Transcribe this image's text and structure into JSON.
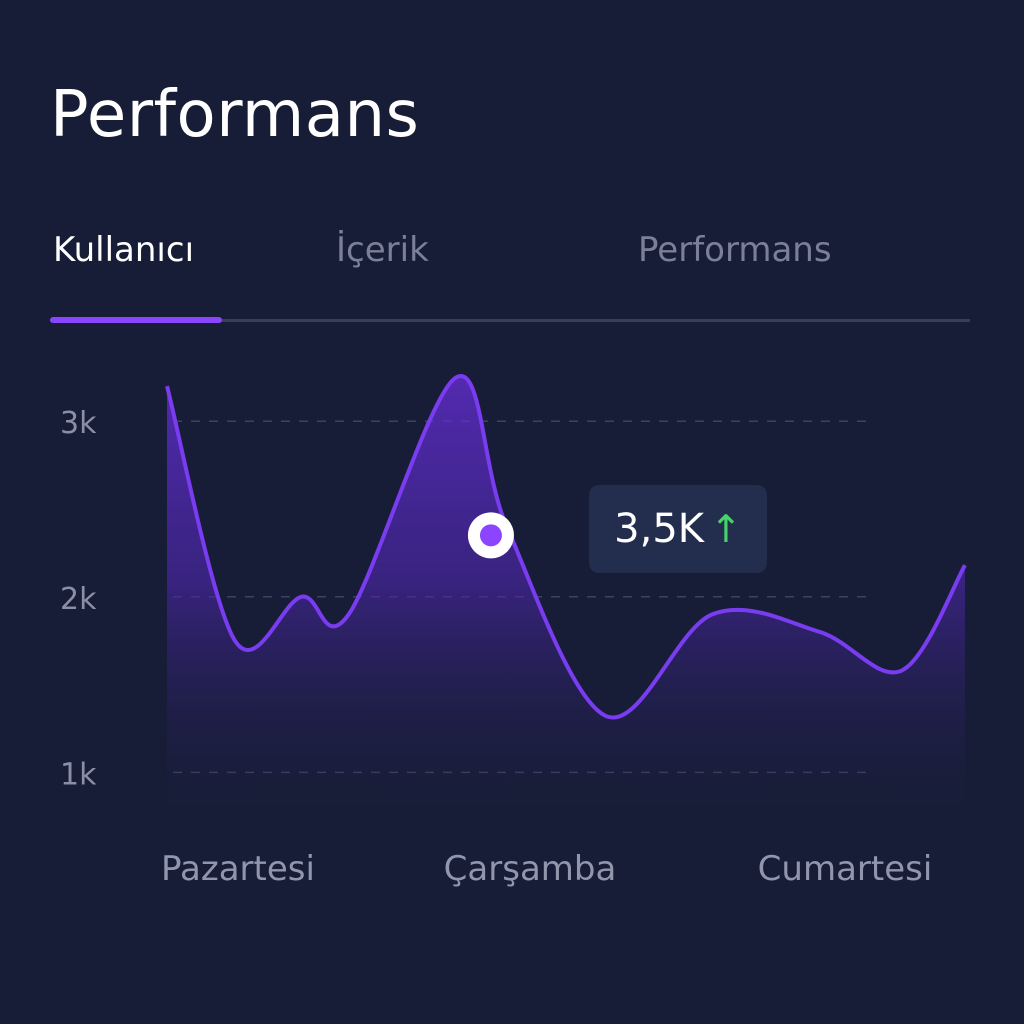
{
  "title": "Performans",
  "tabs": [
    {
      "label": "Kullanıcı",
      "active": true
    },
    {
      "label": "İçerik",
      "active": false
    },
    {
      "label": "Performans",
      "active": false
    }
  ],
  "colors": {
    "background": "#171d36",
    "accent": "#8b45ff",
    "line": "#7a3cf0",
    "marker_fill": "#8b45ff",
    "positive": "#46d46a"
  },
  "tooltip": {
    "value": "3,5K",
    "trend_icon": "arrow-up-icon"
  },
  "chart_data": {
    "type": "area",
    "categories": [
      "Pazartesi",
      "Çarşamba",
      "Cumartesi"
    ],
    "yticks": [
      {
        "label": "3k",
        "value": 3000
      },
      {
        "label": "2k",
        "value": 2000
      },
      {
        "label": "1k",
        "value": 1000
      }
    ],
    "ylim": [
      700,
      3400
    ],
    "xlim": [
      0,
      6
    ],
    "grid": "dashed-horizontal",
    "legend": "none",
    "series": [
      {
        "points": [
          [
            0,
            3200
          ],
          [
            0.43,
            1750
          ],
          [
            0.85,
            2000
          ],
          [
            1.15,
            1900
          ],
          [
            1.83,
            3250
          ],
          [
            2.15,
            2400
          ],
          [
            2.78,
            1320
          ],
          [
            3.45,
            1900
          ],
          [
            4.13,
            1800
          ],
          [
            4.65,
            1580
          ],
          [
            5.05,
            2180
          ]
        ]
      }
    ],
    "highlight": {
      "x": 2.05,
      "y": 2350
    }
  }
}
